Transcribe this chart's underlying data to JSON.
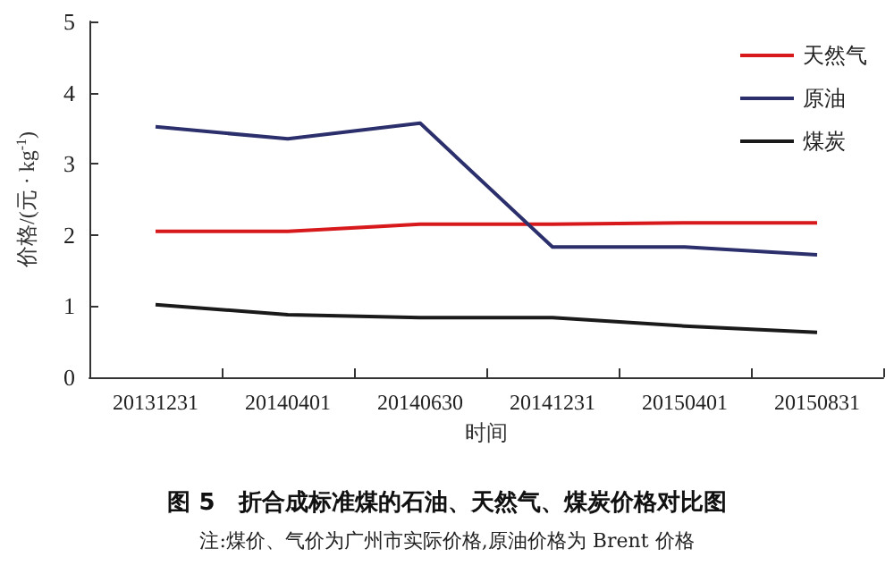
{
  "chart_data": {
    "type": "line",
    "title": "图 5　折合成标准煤的石油、天然气、煤炭价格对比图",
    "xlabel": "时间",
    "ylabel": "价格/(元 · kg$^{-1}$)",
    "annotations": [
      "注:煤价、气价为广州市实际价格,原油价格为 Brent 价格"
    ],
    "categories": [
      "20131231",
      "20140401",
      "20140630",
      "20141231",
      "20150401",
      "20150831"
    ],
    "series": [
      {
        "name": "天然气",
        "color": "#d7191c",
        "values": [
          2.05,
          2.05,
          2.15,
          2.15,
          2.17,
          2.17
        ]
      },
      {
        "name": "原油",
        "color": "#2b2f6b",
        "values": [
          3.52,
          3.35,
          3.57,
          1.83,
          1.83,
          1.72
        ]
      },
      {
        "name": "煤炭",
        "color": "#1a1a1a",
        "values": [
          1.02,
          0.88,
          0.84,
          0.84,
          0.72,
          0.63
        ]
      }
    ],
    "ylim": [
      0,
      5
    ],
    "yticks": [
      0,
      1,
      2,
      3,
      4,
      5
    ],
    "grid": false,
    "legend": "top right",
    "marker": "none",
    "line_style": "solid"
  }
}
